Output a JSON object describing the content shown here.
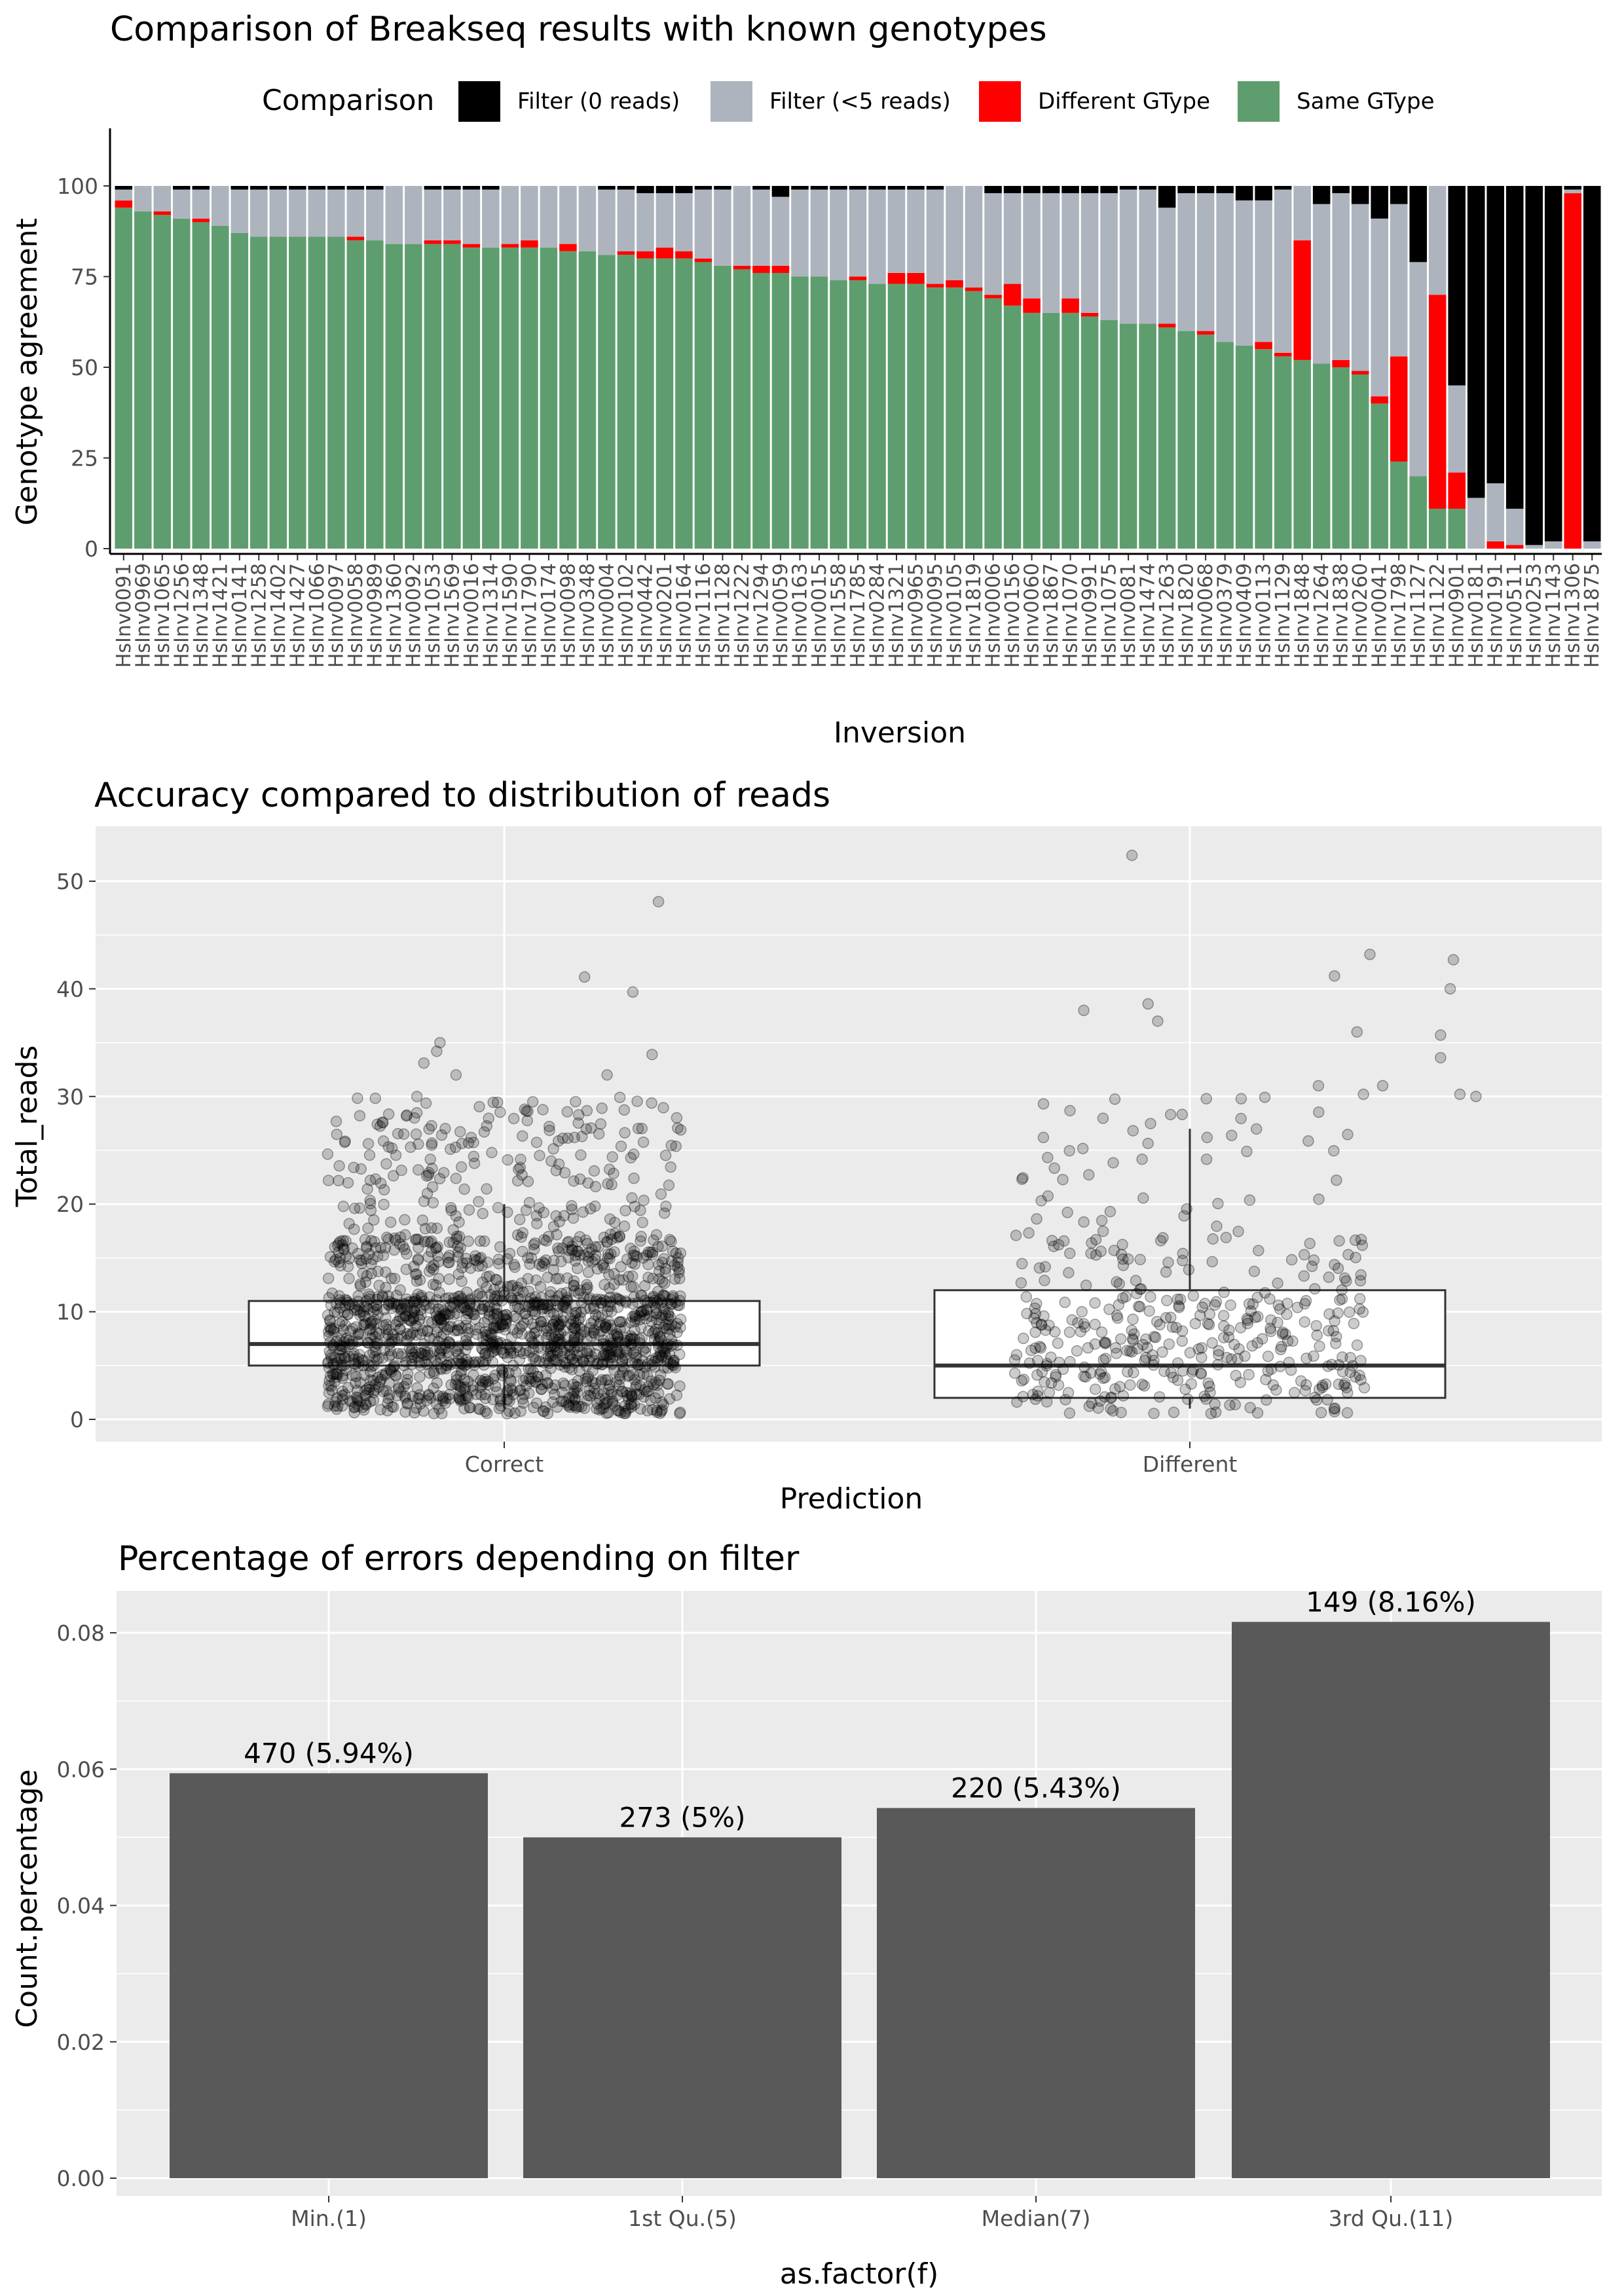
{
  "chart_data": [
    {
      "type": "bar",
      "stacked": true,
      "title": "Comparison of Breakseq results with known genotypes",
      "xlabel": "Inversion",
      "ylabel": "Genotype agreement",
      "ylim": [
        0,
        100
      ],
      "yticks": [
        0,
        25,
        50,
        75,
        100
      ],
      "grid": false,
      "legend": {
        "title": "Comparison",
        "placement": "top",
        "entries": [
          {
            "name": "Filter (0 reads)",
            "color": "#000000"
          },
          {
            "name": "Filter (<5 reads)",
            "color": "#aeb4bd"
          },
          {
            "name": "Different GType",
            "color": "#ff0000"
          },
          {
            "name": "Same GType",
            "color": "#5e9e6e"
          }
        ]
      },
      "categories": [
        "HsInv0091",
        "HsInv0969",
        "HsInv1065",
        "HsInv1256",
        "HsInv1348",
        "HsInv1421",
        "HsInv0141",
        "HsInv1258",
        "HsInv1402",
        "HsInv1427",
        "HsInv1066",
        "HsInv0097",
        "HsInv0058",
        "HsInv0989",
        "HsInv1360",
        "HsInv0092",
        "HsInv1053",
        "HsInv1569",
        "HsInv0016",
        "HsInv1314",
        "HsInv1590",
        "HsInv1790",
        "HsInv0174",
        "HsInv0098",
        "HsInv0348",
        "HsInv0004",
        "HsInv0102",
        "HsInv0442",
        "HsInv0201",
        "HsInv0164",
        "HsInv1116",
        "HsInv1128",
        "HsInv1222",
        "HsInv1294",
        "HsInv0059",
        "HsInv0163",
        "HsInv0015",
        "HsInv1558",
        "HsInv1785",
        "HsInv0284",
        "HsInv1321",
        "HsInv0965",
        "HsInv0095",
        "HsInv0105",
        "HsInv1819",
        "HsInv0006",
        "HsInv0156",
        "HsInv0060",
        "HsInv1867",
        "HsInv1070",
        "HsInv0991",
        "HsInv1075",
        "HsInv0081",
        "HsInv1474",
        "HsInv1263",
        "HsInv1820",
        "HsInv0068",
        "HsInv0379",
        "HsInv0409",
        "HsInv0113",
        "HsInv1129",
        "HsInv1848",
        "HsInv1264",
        "HsInv1838",
        "HsInv0260",
        "HsInv0041",
        "HsInv1798",
        "HsInv1127",
        "HsInv1122",
        "HsInv0901",
        "HsInv0181",
        "HsInv0191",
        "HsInv0511",
        "HsInv0253",
        "HsInv1143",
        "HsInv1306",
        "HsInv1875"
      ],
      "series": [
        {
          "name": "Same GType",
          "values": [
            94,
            93,
            92,
            91,
            90,
            89,
            87,
            86,
            86,
            86,
            86,
            86,
            85,
            85,
            84,
            84,
            84,
            84,
            83,
            83,
            83,
            83,
            83,
            82,
            82,
            81,
            81,
            80,
            80,
            80,
            79,
            78,
            77,
            76,
            76,
            75,
            75,
            74,
            74,
            73,
            73,
            73,
            72,
            72,
            71,
            69,
            67,
            65,
            65,
            65,
            64,
            63,
            62,
            62,
            61,
            60,
            59,
            57,
            56,
            55,
            53,
            52,
            51,
            50,
            48,
            40,
            24,
            20,
            11,
            11,
            0,
            0,
            0,
            0,
            0,
            0,
            0
          ]
        },
        {
          "name": "Different GType",
          "values": [
            2,
            0,
            1,
            0,
            1,
            0,
            0,
            0,
            0,
            0,
            0,
            0,
            1,
            0,
            0,
            0,
            1,
            1,
            1,
            0,
            1,
            2,
            0,
            2,
            0,
            0,
            1,
            2,
            3,
            2,
            1,
            0,
            1,
            2,
            2,
            0,
            0,
            0,
            1,
            0,
            3,
            3,
            1,
            2,
            1,
            1,
            6,
            4,
            0,
            4,
            1,
            0,
            0,
            0,
            1,
            0,
            1,
            0,
            0,
            2,
            1,
            33,
            0,
            2,
            1,
            2,
            29,
            0,
            59,
            10,
            0,
            2,
            1,
            0,
            0,
            98,
            0
          ]
        },
        {
          "name": "Filter (<5 reads)",
          "values": [
            3,
            7,
            7,
            8,
            8,
            11,
            12,
            13,
            13,
            13,
            13,
            13,
            13,
            14,
            16,
            16,
            14,
            14,
            15,
            16,
            16,
            15,
            17,
            16,
            18,
            18,
            17,
            16,
            15,
            16,
            19,
            21,
            22,
            21,
            19,
            24,
            24,
            25,
            24,
            26,
            23,
            23,
            26,
            26,
            28,
            28,
            25,
            29,
            33,
            29,
            33,
            35,
            37,
            37,
            32,
            38,
            38,
            41,
            40,
            39,
            45,
            15,
            44,
            46,
            46,
            49,
            42,
            59,
            30,
            24,
            14,
            16,
            10,
            1,
            2,
            1,
            2
          ]
        },
        {
          "name": "Filter (0 reads)",
          "values": [
            1,
            0,
            0,
            1,
            1,
            0,
            1,
            1,
            1,
            1,
            1,
            1,
            1,
            1,
            0,
            0,
            1,
            1,
            1,
            1,
            0,
            0,
            0,
            0,
            0,
            1,
            1,
            2,
            2,
            2,
            1,
            1,
            0,
            1,
            3,
            1,
            1,
            1,
            1,
            1,
            1,
            1,
            1,
            0,
            0,
            2,
            2,
            2,
            2,
            2,
            2,
            2,
            1,
            1,
            6,
            2,
            2,
            2,
            4,
            4,
            1,
            0,
            5,
            2,
            5,
            9,
            5,
            21,
            0,
            55,
            86,
            82,
            89,
            99,
            98,
            1,
            98
          ]
        }
      ]
    },
    {
      "type": "scatter",
      "overlay": "boxplot",
      "title": "Accuracy compared to distribution of reads",
      "xlabel": "Prediction",
      "ylabel": "Total_reads",
      "categories": [
        "Correct",
        "Different"
      ],
      "ylim": [
        -2,
        55
      ],
      "yticks": [
        0,
        10,
        20,
        30,
        40,
        50
      ],
      "grid": true,
      "boxes": [
        {
          "category": "Correct",
          "q1": 5,
          "median": 7,
          "q3": 11,
          "whisker_low": 1,
          "whisker_high": 20
        },
        {
          "category": "Different",
          "q1": 2,
          "median": 5,
          "q3": 12,
          "whisker_low": 1,
          "whisker_high": 27
        }
      ],
      "outliers": [
        {
          "category": "Correct",
          "x": 0.25,
          "y": 41.1
        },
        {
          "category": "Correct",
          "x": 0.4,
          "y": 39.7
        },
        {
          "category": "Correct",
          "x": 0.48,
          "y": 48.1
        },
        {
          "category": "Correct",
          "x": 0.46,
          "y": 33.9
        },
        {
          "category": "Correct",
          "x": -0.2,
          "y": 35.0
        },
        {
          "category": "Correct",
          "x": -0.21,
          "y": 34.2
        },
        {
          "category": "Correct",
          "x": -0.25,
          "y": 33.1
        },
        {
          "category": "Correct",
          "x": -0.15,
          "y": 32.0
        },
        {
          "category": "Correct",
          "x": 0.32,
          "y": 32.0
        },
        {
          "category": "Different",
          "x": -0.18,
          "y": 52.4
        },
        {
          "category": "Different",
          "x": 0.56,
          "y": 43.2
        },
        {
          "category": "Different",
          "x": 0.82,
          "y": 42.7
        },
        {
          "category": "Different",
          "x": 0.45,
          "y": 41.2
        },
        {
          "category": "Different",
          "x": -0.33,
          "y": 38.0
        },
        {
          "category": "Different",
          "x": -0.13,
          "y": 38.6
        },
        {
          "category": "Different",
          "x": -0.1,
          "y": 37.0
        },
        {
          "category": "Different",
          "x": 0.81,
          "y": 40.0
        },
        {
          "category": "Different",
          "x": 0.78,
          "y": 35.7
        },
        {
          "category": "Different",
          "x": 0.78,
          "y": 33.6
        },
        {
          "category": "Different",
          "x": 0.52,
          "y": 36.0
        },
        {
          "category": "Different",
          "x": 0.4,
          "y": 31.0
        },
        {
          "category": "Different",
          "x": 0.6,
          "y": 31.0
        },
        {
          "category": "Different",
          "x": 0.54,
          "y": 30.2
        },
        {
          "category": "Different",
          "x": 0.84,
          "y": 30.2
        },
        {
          "category": "Different",
          "x": 0.89,
          "y": 30.0
        }
      ]
    },
    {
      "type": "bar",
      "title": "Percentage of errors depending on filter",
      "xlabel": "as.factor(f)",
      "ylabel": "Count.percentage",
      "categories": [
        "Min.(1)",
        "1st Qu.(5)",
        "Median(7)",
        "3rd Qu.(11)"
      ],
      "values": [
        0.0594,
        0.05,
        0.0543,
        0.0816
      ],
      "data_labels": [
        "470 (5.94%)",
        "273 (5%)",
        "220 (5.43%)",
        "149 (8.16%)"
      ],
      "ylim": [
        0,
        0.085
      ],
      "yticks": [
        0.0,
        0.02,
        0.04,
        0.06,
        0.08
      ],
      "ytick_labels": [
        "0.00",
        "0.02",
        "0.04",
        "0.06",
        "0.08"
      ],
      "grid": true,
      "bar_color": "#595959"
    }
  ]
}
